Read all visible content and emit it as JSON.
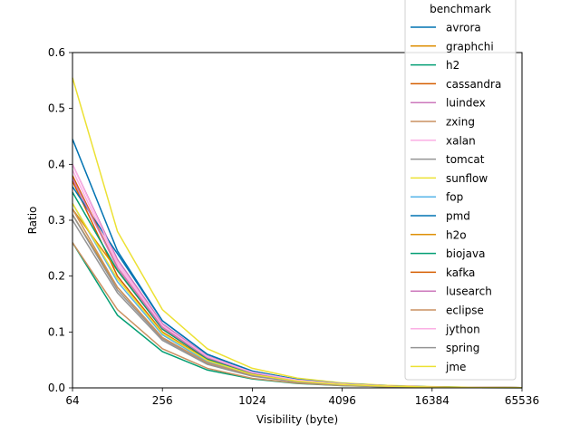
{
  "chart_data": {
    "type": "line",
    "title": "",
    "xlabel": "Visibility (byte)",
    "ylabel": "Ratio",
    "x_scale": "log2",
    "x": [
      64,
      128,
      256,
      512,
      1024,
      2048,
      4096,
      8192,
      16384,
      32768,
      65536
    ],
    "xticks": [
      "64",
      "256",
      "1024",
      "4096",
      "16384",
      "65536"
    ],
    "xlim": [
      64,
      65536
    ],
    "ylim": [
      0,
      0.6
    ],
    "yticks": [
      "0.0",
      "0.1",
      "0.2",
      "0.3",
      "0.4",
      "0.5",
      "0.6"
    ],
    "legend": {
      "title": "benchmark",
      "placement": "top-right"
    },
    "series": [
      {
        "name": "avrora",
        "color": "#0173b2",
        "values": [
          0.445,
          0.245,
          0.12,
          0.06,
          0.03,
          0.015,
          0.0075,
          0.0037,
          0.0018,
          0.0009,
          0.0004
        ]
      },
      {
        "name": "graphchi",
        "color": "#de8f05",
        "values": [
          0.31,
          0.18,
          0.09,
          0.045,
          0.022,
          0.011,
          0.0055,
          0.0027,
          0.0013,
          0.0006,
          0.0003
        ]
      },
      {
        "name": "h2",
        "color": "#029e73",
        "values": [
          0.26,
          0.13,
          0.065,
          0.032,
          0.016,
          0.008,
          0.004,
          0.002,
          0.001,
          0.0005,
          0.0002
        ]
      },
      {
        "name": "cassandra",
        "color": "#d55e00",
        "values": [
          0.37,
          0.2,
          0.1,
          0.05,
          0.025,
          0.0125,
          0.006,
          0.003,
          0.0015,
          0.0007,
          0.0003
        ]
      },
      {
        "name": "luindex",
        "color": "#cc78bc",
        "values": [
          0.4,
          0.23,
          0.115,
          0.057,
          0.028,
          0.014,
          0.007,
          0.0035,
          0.0017,
          0.0008,
          0.0004
        ]
      },
      {
        "name": "zxing",
        "color": "#ca9161",
        "values": [
          0.26,
          0.14,
          0.07,
          0.035,
          0.017,
          0.0085,
          0.0042,
          0.0021,
          0.001,
          0.0005,
          0.0002
        ]
      },
      {
        "name": "xalan",
        "color": "#fbafe4",
        "values": [
          0.39,
          0.22,
          0.11,
          0.055,
          0.027,
          0.0135,
          0.0068,
          0.0034,
          0.0017,
          0.0008,
          0.0004
        ]
      },
      {
        "name": "tomcat",
        "color": "#949494",
        "values": [
          0.31,
          0.175,
          0.088,
          0.044,
          0.022,
          0.011,
          0.0055,
          0.0027,
          0.0013,
          0.0006,
          0.0003
        ]
      },
      {
        "name": "sunflow",
        "color": "#ece133",
        "values": [
          0.555,
          0.28,
          0.14,
          0.07,
          0.035,
          0.0175,
          0.0088,
          0.0044,
          0.0022,
          0.0011,
          0.0005
        ]
      },
      {
        "name": "fop",
        "color": "#56b4e9",
        "values": [
          0.33,
          0.19,
          0.095,
          0.047,
          0.023,
          0.0115,
          0.0058,
          0.0029,
          0.0014,
          0.0007,
          0.0003
        ]
      },
      {
        "name": "pmd",
        "color": "#0173b2",
        "values": [
          0.36,
          0.24,
          0.12,
          0.06,
          0.03,
          0.015,
          0.0075,
          0.0037,
          0.0018,
          0.0009,
          0.0004
        ]
      },
      {
        "name": "h2o",
        "color": "#de8f05",
        "values": [
          0.32,
          0.21,
          0.105,
          0.052,
          0.026,
          0.013,
          0.0065,
          0.0032,
          0.0016,
          0.0008,
          0.0004
        ]
      },
      {
        "name": "biojava",
        "color": "#029e73",
        "values": [
          0.35,
          0.21,
          0.105,
          0.052,
          0.026,
          0.013,
          0.0065,
          0.0032,
          0.0016,
          0.0008,
          0.0004
        ]
      },
      {
        "name": "kafka",
        "color": "#d55e00",
        "values": [
          0.38,
          0.215,
          0.108,
          0.054,
          0.027,
          0.0135,
          0.0067,
          0.0033,
          0.0016,
          0.0008,
          0.0004
        ]
      },
      {
        "name": "lusearch",
        "color": "#cc78bc",
        "values": [
          0.375,
          0.215,
          0.108,
          0.054,
          0.027,
          0.0135,
          0.0067,
          0.0033,
          0.0016,
          0.0008,
          0.0004
        ]
      },
      {
        "name": "eclipse",
        "color": "#ca9161",
        "values": [
          0.32,
          0.18,
          0.09,
          0.045,
          0.022,
          0.011,
          0.0055,
          0.0027,
          0.0013,
          0.0006,
          0.0003
        ]
      },
      {
        "name": "jython",
        "color": "#fbafe4",
        "values": [
          0.4,
          0.225,
          0.112,
          0.056,
          0.028,
          0.014,
          0.007,
          0.0035,
          0.0017,
          0.0008,
          0.0004
        ]
      },
      {
        "name": "spring",
        "color": "#949494",
        "values": [
          0.3,
          0.17,
          0.085,
          0.042,
          0.021,
          0.0105,
          0.0052,
          0.0026,
          0.0013,
          0.0006,
          0.0003
        ]
      },
      {
        "name": "jme",
        "color": "#ece133",
        "values": [
          0.33,
          0.195,
          0.098,
          0.049,
          0.024,
          0.012,
          0.006,
          0.003,
          0.0015,
          0.0007,
          0.0003
        ]
      }
    ]
  }
}
